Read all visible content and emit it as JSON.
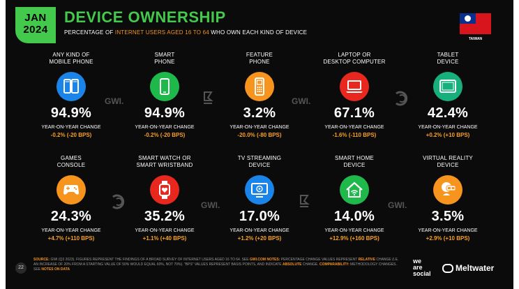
{
  "header": {
    "date_line1": "JAN",
    "date_line2": "2024",
    "title": "DEVICE OWNERSHIP",
    "subtitle_prefix": "PERCENTAGE OF ",
    "subtitle_highlight": "INTERNET USERS AGED 16 TO 64",
    "subtitle_suffix": " WHO OWN EACH KIND OF DEVICE",
    "flag_label": "TAIWAN"
  },
  "yoy_label": "YEAR-ON-YEAR CHANGE",
  "devices": [
    {
      "label_1": "ANY KIND OF",
      "label_2": "MOBILE PHONE",
      "value": "94.9%",
      "change": "-0.2% (-20 BPS)",
      "icon": "mobile-phones-icon",
      "color": "#1b84e8"
    },
    {
      "label_1": "SMART",
      "label_2": "PHONE",
      "value": "94.9%",
      "change": "-0.2% (-20 BPS)",
      "icon": "smartphone-icon",
      "color": "#1fb84b"
    },
    {
      "label_1": "FEATURE",
      "label_2": "PHONE",
      "value": "3.2%",
      "change": "-20.0% (-80 BPS)",
      "icon": "feature-phone-icon",
      "color": "#f7941d"
    },
    {
      "label_1": "LAPTOP OR",
      "label_2": "DESKTOP COMPUTER",
      "value": "67.1%",
      "change": "-1.6% (-110 BPS)",
      "icon": "laptop-icon",
      "color": "#e8281e"
    },
    {
      "label_1": "TABLET",
      "label_2": "DEVICE",
      "value": "42.4%",
      "change": "+0.2% (+10 BPS)",
      "icon": "tablet-icon",
      "color": "#17b07c"
    },
    {
      "label_1": "GAMES",
      "label_2": "CONSOLE",
      "value": "24.3%",
      "change": "+4.7% (+110 BPS)",
      "icon": "game-controller-icon",
      "color": "#f7941d"
    },
    {
      "label_1": "SMART WATCH OR",
      "label_2": "SMART WRISTBAND",
      "value": "35.2%",
      "change": "+1.1% (+40 BPS)",
      "icon": "smartwatch-icon",
      "color": "#e8281e"
    },
    {
      "label_1": "TV STREAMING",
      "label_2": "DEVICE",
      "value": "17.0%",
      "change": "+1.2% (+20 BPS)",
      "icon": "tv-streaming-icon",
      "color": "#1b84e8"
    },
    {
      "label_1": "SMART HOME",
      "label_2": "DEVICE",
      "value": "14.0%",
      "change": "+12.9% (+160 BPS)",
      "icon": "smart-home-icon",
      "color": "#1fb84b"
    },
    {
      "label_1": "VIRTUAL REALITY",
      "label_2": "DEVICE",
      "value": "3.5%",
      "change": "+2.9% (+10 BPS)",
      "icon": "vr-headset-icon",
      "color": "#f7941d"
    }
  ],
  "watermarks": {
    "gwi": "GWI.",
    "kepios": "KEPIOS"
  },
  "footer": {
    "source_label": "SOURCE:",
    "source_text": " GWI (Q3 2023). FIGURES REPRESENT THE FINDINGS OF A BROAD SURVEY OF INTERNET USERS AGED 16 TO 64. SEE ",
    "source_link": "GWI.COM",
    "notes_label": " NOTES:",
    "notes_text": " PERCENTAGE CHANGE VALUES REPRESENT ",
    "relative": "RELATIVE",
    "notes_text2": " CHANGE (I.E. AN INCREASE OF 20% FROM A STARTING VALUE OF 50% WOULD EQUAL 60%, NOT 70%). \"BPS\" VALUES REPRESENT BASIS POINTS, AND INDICATE ",
    "absolute": "ABSOLUTE",
    "notes_text3": " CHANGE. ",
    "comparability_label": "COMPARABILITY:",
    "comparability_text": " METHODOLOGY CHANGES. SEE ",
    "notes_on_data": "NOTES ON DATA",
    "page_number": "22",
    "brand_line1": "we",
    "brand_line2": "are",
    "brand_line3": "social",
    "meltwater": "Meltwater"
  }
}
